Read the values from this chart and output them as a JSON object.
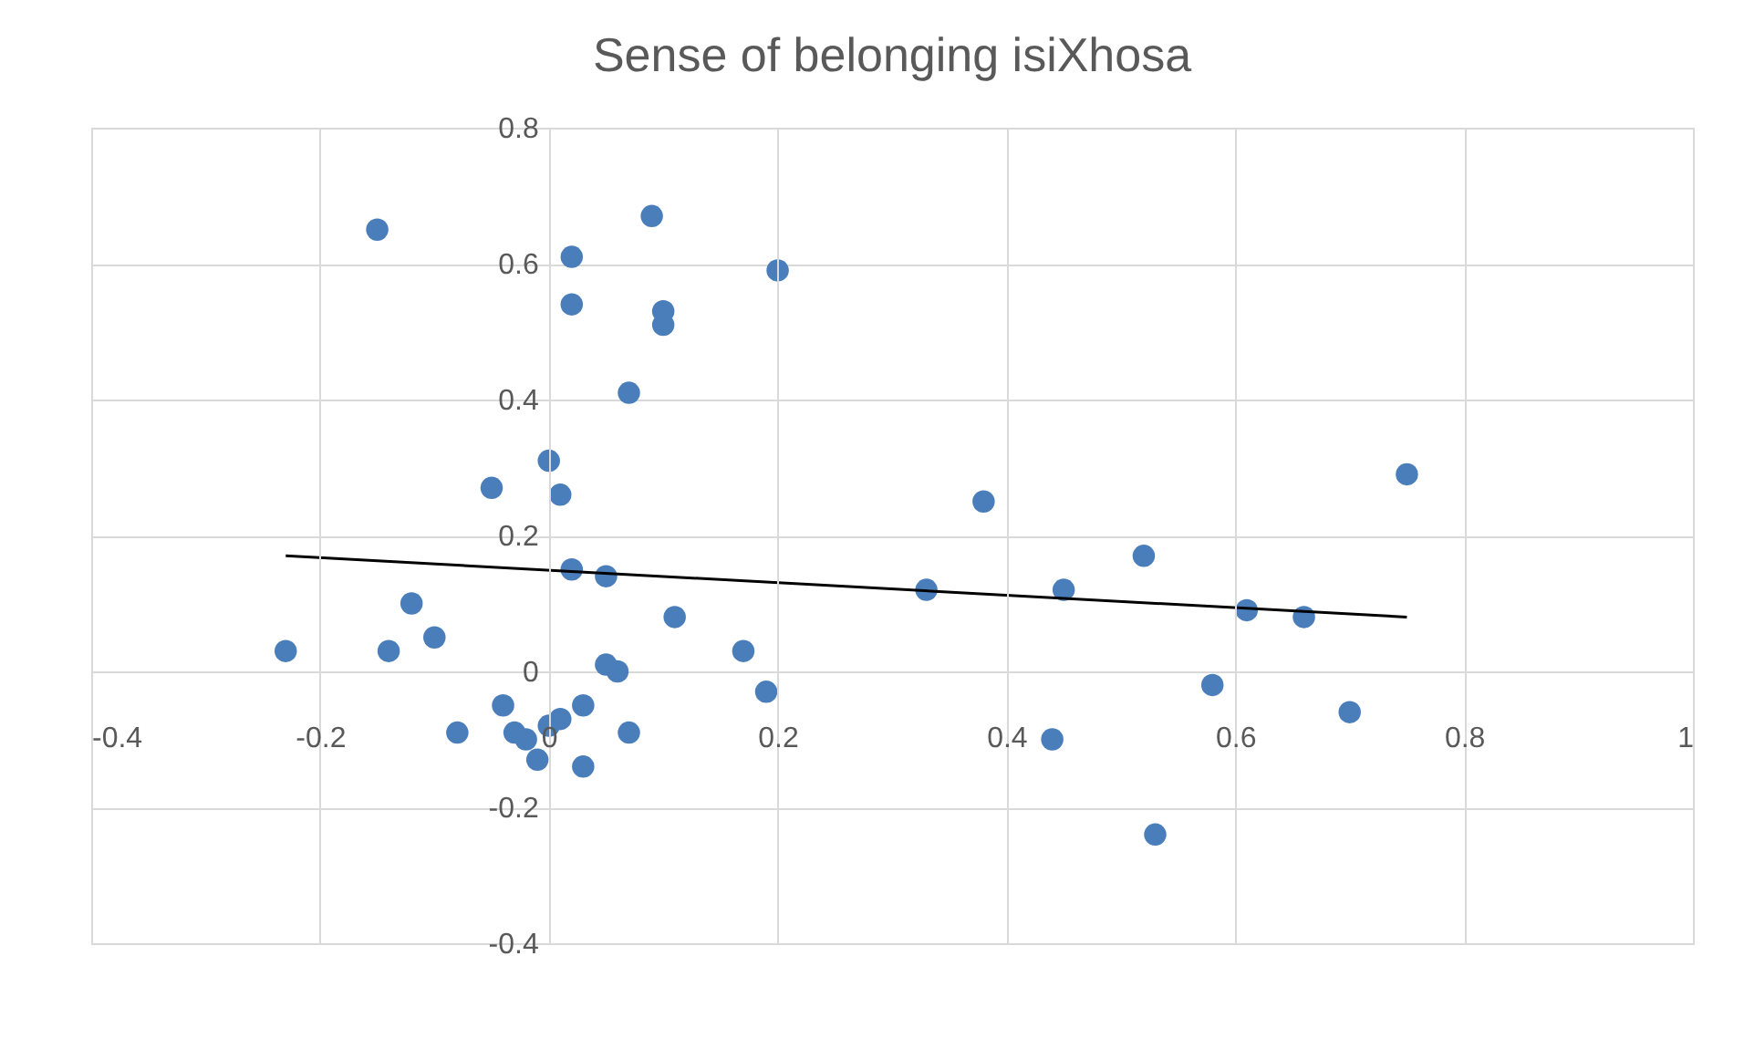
{
  "chart_data": {
    "type": "scatter",
    "title": "Sense of belonging isiXhosa",
    "xlim": [
      -0.4,
      1
    ],
    "xticks": [
      -0.4,
      -0.2,
      0,
      0.2,
      0.4,
      0.6,
      0.8,
      1
    ],
    "ylim": [
      -0.4,
      0.8
    ],
    "yticks": [
      -0.4,
      -0.2,
      0,
      0.2,
      0.4,
      0.6,
      0.8
    ],
    "grid": true,
    "marker": "circle",
    "series": [
      {
        "type": "scatter",
        "color": "#4a7ebb",
        "x": [
          -0.23,
          -0.15,
          -0.14,
          -0.12,
          -0.1,
          -0.08,
          -0.05,
          -0.04,
          -0.03,
          -0.02,
          -0.01,
          0.0,
          0.0,
          0.01,
          0.01,
          0.02,
          0.02,
          0.02,
          0.03,
          0.03,
          0.05,
          0.05,
          0.06,
          0.07,
          0.07,
          0.09,
          0.1,
          0.1,
          0.11,
          0.17,
          0.19,
          0.2,
          0.33,
          0.38,
          0.45,
          0.44,
          0.52,
          0.53,
          0.58,
          0.61,
          0.66,
          0.7,
          0.75
        ],
        "values": [
          0.03,
          0.65,
          0.03,
          0.1,
          0.05,
          -0.09,
          0.27,
          -0.05,
          -0.09,
          -0.1,
          -0.13,
          0.31,
          -0.08,
          0.26,
          -0.07,
          0.61,
          0.54,
          0.15,
          -0.05,
          -0.14,
          0.14,
          0.01,
          0.0,
          -0.09,
          0.41,
          0.67,
          0.53,
          0.51,
          0.08,
          0.03,
          -0.03,
          0.59,
          0.12,
          0.25,
          0.12,
          -0.1,
          0.17,
          -0.24,
          -0.02,
          0.09,
          0.08,
          -0.06,
          0.29
        ]
      },
      {
        "type": "line",
        "color": "#000000",
        "marker": "none",
        "line_style": "solid",
        "x": [
          -0.23,
          0.75
        ],
        "values": [
          0.17,
          0.08
        ]
      }
    ]
  }
}
